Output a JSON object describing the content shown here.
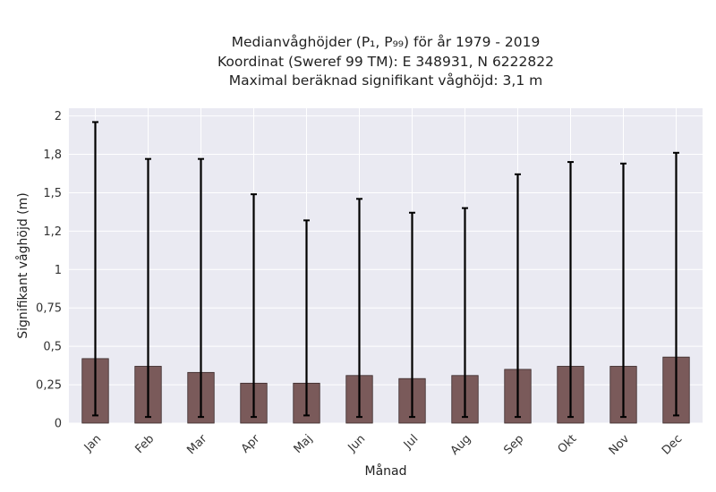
{
  "chart_data": {
    "type": "bar",
    "title_lines": [
      "Medianvåghöjder (P₁, P₉₉) för år 1979 - 2019",
      "Koordinat (Sweref 99 TM): E 348931, N 6222822",
      "Maximal beräknad signifikant våghöjd: 3,1 m"
    ],
    "xlabel": "Månad",
    "ylabel": "Signifikant våghöjd (m)",
    "ylim": [
      0,
      2.05
    ],
    "yticks": [
      0,
      0.25,
      0.5,
      0.75,
      1,
      1.25,
      1.5,
      1.75,
      2
    ],
    "ytick_labels": [
      "0",
      "0,25",
      "0,5",
      "0,75",
      "1",
      "1,2",
      "1,5",
      "1,8",
      "2"
    ],
    "categories": [
      "Jan",
      "Feb",
      "Mar",
      "Apr",
      "Maj",
      "Jun",
      "Jul",
      "Aug",
      "Sep",
      "Okt",
      "Nov",
      "Dec"
    ],
    "values": [
      0.42,
      0.37,
      0.33,
      0.26,
      0.26,
      0.31,
      0.29,
      0.31,
      0.35,
      0.37,
      0.37,
      0.43
    ],
    "p1": [
      0.05,
      0.04,
      0.04,
      0.04,
      0.05,
      0.04,
      0.04,
      0.04,
      0.04,
      0.04,
      0.04,
      0.05
    ],
    "p99": [
      1.96,
      1.72,
      1.72,
      1.49,
      1.32,
      1.46,
      1.37,
      1.4,
      1.62,
      1.7,
      1.69,
      1.76
    ],
    "grid": true,
    "colors": {
      "bar": "#7a5a5a",
      "bar_edge": "#3a2a2a",
      "plot_bg": "#eaeaf2",
      "grid": "#ffffff",
      "error_bar": "#000000"
    }
  }
}
